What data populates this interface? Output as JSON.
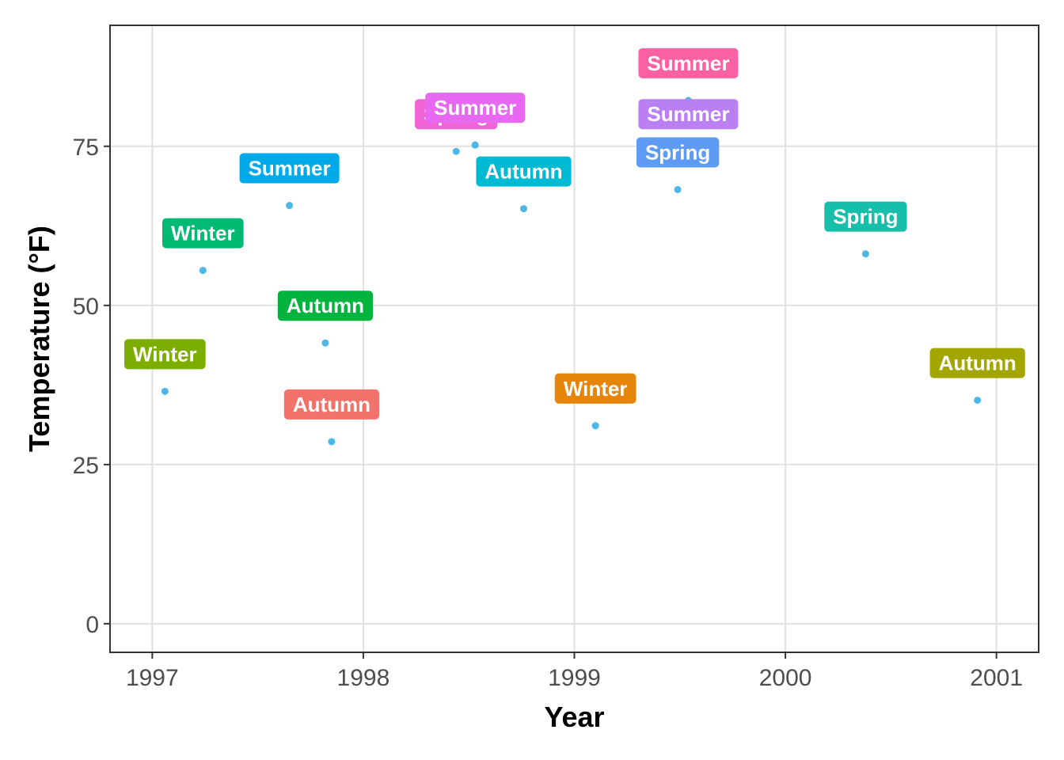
{
  "chart_data": {
    "type": "scatter",
    "title": "",
    "xlabel": "Year",
    "ylabel": "Temperature (°F)",
    "xlim": [
      1996.8,
      2001.2
    ],
    "ylim": [
      -4.5,
      94
    ],
    "x_ticks": [
      1997,
      1998,
      1999,
      2000,
      2001
    ],
    "y_ticks": [
      0,
      25,
      50,
      75
    ],
    "x_tick_labels": [
      "1997",
      "1998",
      "1999",
      "2000",
      "2001"
    ],
    "y_tick_labels": [
      "0",
      "25",
      "50",
      "75"
    ],
    "grid": true,
    "legend": "none",
    "point_color": "#4db8e8",
    "points": [
      {
        "x": 1997.06,
        "y": 36.5,
        "label": "Winter",
        "color": "#7CAE00"
      },
      {
        "x": 1997.24,
        "y": 55.5,
        "label": "Winter",
        "color": "#00BA73"
      },
      {
        "x": 1997.65,
        "y": 65.7,
        "label": "Summer",
        "color": "#00A9E8"
      },
      {
        "x": 1997.82,
        "y": 44.1,
        "label": "Autumn",
        "color": "#00B43D"
      },
      {
        "x": 1997.85,
        "y": 28.6,
        "label": "Autumn",
        "color": "#F0726A"
      },
      {
        "x": 1998.44,
        "y": 74.2,
        "label": "Spring",
        "color": "#F064D6"
      },
      {
        "x": 1998.53,
        "y": 75.2,
        "label": "Spring",
        "color": "#B67EF5"
      },
      {
        "x": 1998.53,
        "y": 75.2,
        "label": "Summer",
        "color": "#E769F2"
      },
      {
        "x": 1998.76,
        "y": 65.2,
        "label": "Autumn",
        "color": "#00BAD3"
      },
      {
        "x": 1999.1,
        "y": 31.1,
        "label": "Winter",
        "color": "#C59A00"
      },
      {
        "x": 1999.1,
        "y": 31.1,
        "label": "Winter",
        "color": "#E5860B"
      },
      {
        "x": 1999.49,
        "y": 68.2,
        "label": "Spring",
        "color": "#5D9BF5"
      },
      {
        "x": 1999.54,
        "y": 82.2,
        "label": "Summer",
        "color": "#FC61A4"
      },
      {
        "x": 1999.54,
        "y": 74.2,
        "label": "Summer",
        "color": "#BB7FF4"
      },
      {
        "x": 2000.38,
        "y": 58.1,
        "label": "Spring",
        "color": "#17BEAA"
      },
      {
        "x": 2000.91,
        "y": 35.1,
        "label": "Autumn",
        "color": "#A3A500"
      }
    ]
  }
}
